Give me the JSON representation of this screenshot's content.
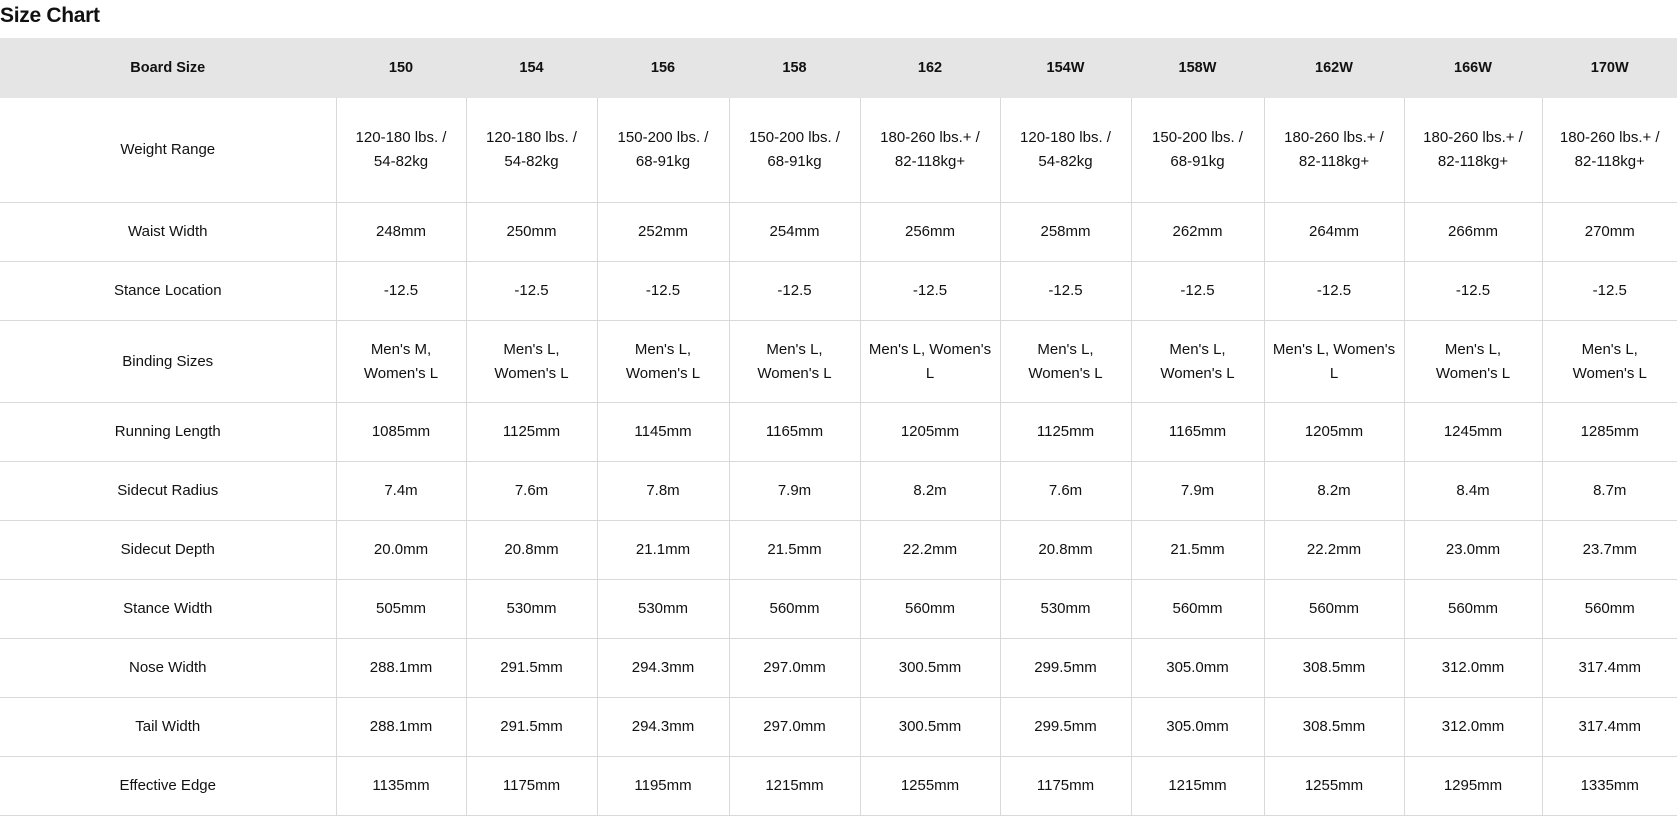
{
  "title": "Size Chart",
  "header": {
    "label": "Board Size",
    "sizes": [
      "150",
      "154",
      "156",
      "158",
      "162",
      "154W",
      "158W",
      "162W",
      "166W",
      "170W"
    ]
  },
  "rows": [
    {
      "label": "Weight Range",
      "values": [
        "120-180 lbs. / 54-82kg",
        "120-180 lbs. / 54-82kg",
        "150-200 lbs. / 68-91kg",
        "150-200 lbs. / 68-91kg",
        "180-260 lbs.+ / 82-118kg+",
        "120-180 lbs. / 54-82kg",
        "150-200 lbs. / 68-91kg",
        "180-260 lbs.+ / 82-118kg+",
        "180-260 lbs.+ / 82-118kg+",
        "180-260 lbs.+ / 82-118kg+"
      ]
    },
    {
      "label": "Waist Width",
      "values": [
        "248mm",
        "250mm",
        "252mm",
        "254mm",
        "256mm",
        "258mm",
        "262mm",
        "264mm",
        "266mm",
        "270mm"
      ]
    },
    {
      "label": "Stance Location",
      "values": [
        "-12.5",
        "-12.5",
        "-12.5",
        "-12.5",
        "-12.5",
        "-12.5",
        "-12.5",
        "-12.5",
        "-12.5",
        "-12.5"
      ]
    },
    {
      "label": "Binding Sizes",
      "values": [
        "Men's M, Women's L",
        "Men's L, Women's L",
        "Men's L, Women's L",
        "Men's L, Women's L",
        "Men's L, Women's L",
        "Men's L, Women's L",
        "Men's L, Women's L",
        "Men's L, Women's L",
        "Men's L, Women's L",
        "Men's L, Women's L"
      ]
    },
    {
      "label": "Running Length",
      "values": [
        "1085mm",
        "1125mm",
        "1145mm",
        "1165mm",
        "1205mm",
        "1125mm",
        "1165mm",
        "1205mm",
        "1245mm",
        "1285mm"
      ]
    },
    {
      "label": "Sidecut Radius",
      "values": [
        "7.4m",
        "7.6m",
        "7.8m",
        "7.9m",
        "8.2m",
        "7.6m",
        "7.9m",
        "8.2m",
        "8.4m",
        "8.7m"
      ]
    },
    {
      "label": "Sidecut Depth",
      "values": [
        "20.0mm",
        "20.8mm",
        "21.1mm",
        "21.5mm",
        "22.2mm",
        "20.8mm",
        "21.5mm",
        "22.2mm",
        "23.0mm",
        "23.7mm"
      ]
    },
    {
      "label": "Stance Width",
      "values": [
        "505mm",
        "530mm",
        "530mm",
        "560mm",
        "560mm",
        "530mm",
        "560mm",
        "560mm",
        "560mm",
        "560mm"
      ]
    },
    {
      "label": "Nose Width",
      "values": [
        "288.1mm",
        "291.5mm",
        "294.3mm",
        "297.0mm",
        "300.5mm",
        "299.5mm",
        "305.0mm",
        "308.5mm",
        "312.0mm",
        "317.4mm"
      ]
    },
    {
      "label": "Tail Width",
      "values": [
        "288.1mm",
        "291.5mm",
        "294.3mm",
        "297.0mm",
        "300.5mm",
        "299.5mm",
        "305.0mm",
        "308.5mm",
        "312.0mm",
        "317.4mm"
      ]
    },
    {
      "label": "Effective Edge",
      "values": [
        "1135mm",
        "1175mm",
        "1195mm",
        "1215mm",
        "1255mm",
        "1175mm",
        "1215mm",
        "1255mm",
        "1295mm",
        "1335mm"
      ]
    }
  ]
}
